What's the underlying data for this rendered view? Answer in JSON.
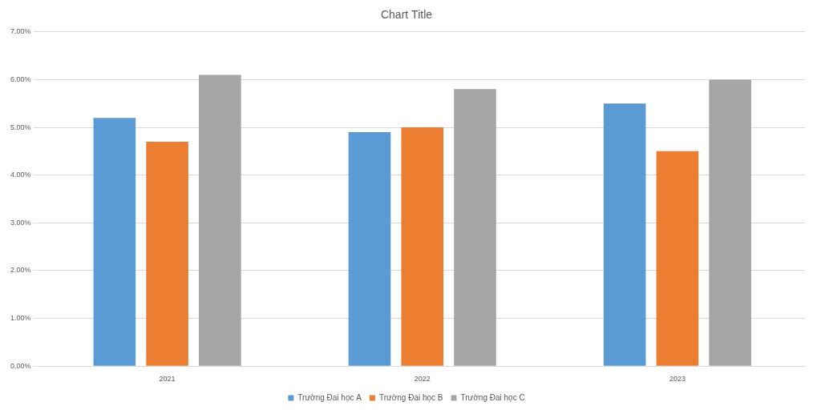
{
  "chart_data": {
    "type": "bar",
    "title": "Chart Title",
    "categories": [
      "2021",
      "2022",
      "2023"
    ],
    "series": [
      {
        "name": "Trường Đai học A",
        "color": "#5b9bd5",
        "values": [
          5.2,
          4.9,
          5.5
        ]
      },
      {
        "name": "Trường Đai học B",
        "color": "#ed7d31",
        "values": [
          4.7,
          5.0,
          4.5
        ]
      },
      {
        "name": "Trường Đai học C",
        "color": "#a5a5a5",
        "values": [
          6.1,
          5.8,
          6.0
        ]
      }
    ],
    "ylim": [
      0,
      7
    ],
    "yticks": [
      {
        "value": 0,
        "label": "0.00%"
      },
      {
        "value": 1,
        "label": "1.00%"
      },
      {
        "value": 2,
        "label": "2.00%"
      },
      {
        "value": 3,
        "label": "3.00%"
      },
      {
        "value": 4,
        "label": "4.00%"
      },
      {
        "value": 5,
        "label": "5.00%"
      },
      {
        "value": 6,
        "label": "6.00%"
      },
      {
        "value": 7,
        "label": "7.00%"
      }
    ],
    "grid": true,
    "legend": "bottom"
  }
}
